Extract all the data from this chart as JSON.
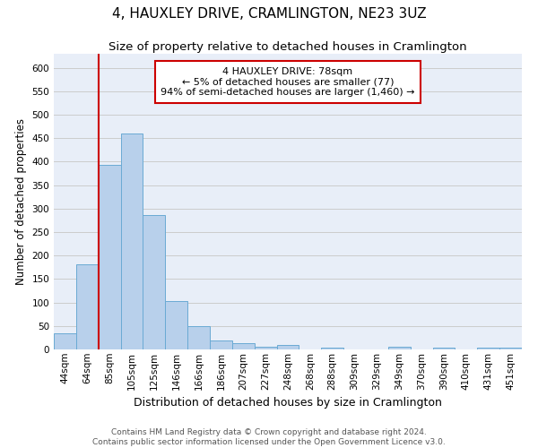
{
  "title": "4, HAUXLEY DRIVE, CRAMLINGTON, NE23 3UZ",
  "subtitle": "Size of property relative to detached houses in Cramlington",
  "xlabel": "Distribution of detached houses by size in Cramlington",
  "ylabel": "Number of detached properties",
  "footer_line1": "Contains HM Land Registry data © Crown copyright and database right 2024.",
  "footer_line2": "Contains public sector information licensed under the Open Government Licence v3.0.",
  "categories": [
    "44sqm",
    "64sqm",
    "85sqm",
    "105sqm",
    "125sqm",
    "146sqm",
    "166sqm",
    "186sqm",
    "207sqm",
    "227sqm",
    "248sqm",
    "268sqm",
    "288sqm",
    "309sqm",
    "329sqm",
    "349sqm",
    "370sqm",
    "390sqm",
    "410sqm",
    "431sqm",
    "451sqm"
  ],
  "values": [
    35,
    182,
    393,
    460,
    287,
    103,
    49,
    20,
    14,
    6,
    9,
    0,
    4,
    0,
    0,
    6,
    0,
    4,
    0,
    3,
    4
  ],
  "bar_color": "#b8d0eb",
  "bar_edge_color": "#6aaad4",
  "property_line_x": 1.5,
  "property_line_color": "#cc0000",
  "annotation_line1": "4 HAUXLEY DRIVE: 78sqm",
  "annotation_line2": "← 5% of detached houses are smaller (77)",
  "annotation_line3": "94% of semi-detached houses are larger (1,460) →",
  "annotation_box_color": "#cc0000",
  "ylim": [
    0,
    630
  ],
  "yticks": [
    0,
    50,
    100,
    150,
    200,
    250,
    300,
    350,
    400,
    450,
    500,
    550,
    600
  ],
  "grid_color": "#cccccc",
  "bg_color": "#e8eef8",
  "title_fontsize": 11,
  "subtitle_fontsize": 9.5,
  "ylabel_fontsize": 8.5,
  "xlabel_fontsize": 9,
  "tick_fontsize": 7.5,
  "footer_fontsize": 6.5
}
